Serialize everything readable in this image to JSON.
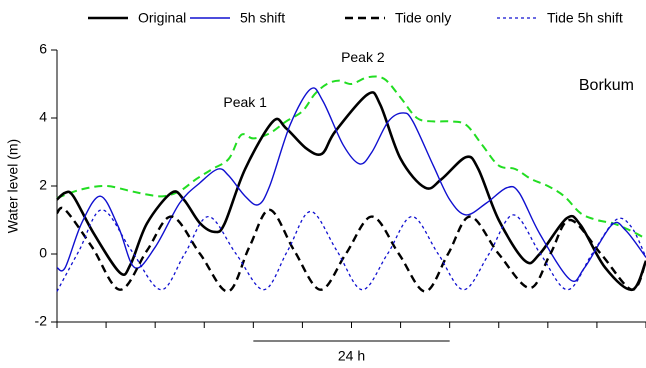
{
  "chart_data": {
    "type": "line",
    "ylabel": "Water level (m)",
    "ylim": [
      -2,
      6
    ],
    "yticks": [
      -2,
      0,
      2,
      4,
      6
    ],
    "xlim": [
      0,
      72
    ],
    "xticks": [
      0,
      6,
      12,
      18,
      24,
      30,
      36,
      42,
      48,
      54,
      60,
      66,
      72
    ],
    "annotations": [
      {
        "text": "Peak 1",
        "x": 26.4,
        "y": 3.9
      },
      {
        "text": "Peak 2",
        "x": 38,
        "y": 5.2
      },
      {
        "text": "Borkum"
      }
    ],
    "span": {
      "label": "24 h",
      "range": [
        24,
        48
      ]
    },
    "series": [
      {
        "name": "Original",
        "color": "#000000",
        "style": "solid",
        "width": 2.6,
        "x": [
          0,
          1,
          2,
          4.5,
          7.7,
          9,
          11,
          14,
          15.5,
          17.5,
          19.3,
          20.5,
          23,
          26.4,
          28,
          30.5,
          32.4,
          34,
          38,
          39.5,
          42,
          45,
          47,
          50,
          51.5,
          54,
          57.2,
          59,
          62.3,
          64,
          67,
          70.3,
          72
        ],
        "values": [
          1.6,
          1.8,
          1.7,
          0.6,
          -0.55,
          -0.3,
          0.9,
          1.8,
          1.6,
          0.9,
          0.65,
          0.9,
          2.5,
          3.9,
          3.7,
          3.1,
          2.95,
          3.6,
          4.7,
          4.4,
          2.8,
          1.95,
          2.2,
          2.85,
          2.5,
          1.0,
          -0.2,
          0.0,
          1.05,
          0.85,
          -0.4,
          -1.05,
          -0.2
        ]
      },
      {
        "name": "5h shift",
        "color": "#1010d0",
        "style": "solid",
        "width": 1.4,
        "x": [
          0,
          1,
          3,
          5.3,
          7.5,
          9.5,
          12,
          15,
          17.5,
          19.7,
          21,
          23,
          24.6,
          26,
          28.5,
          31,
          32.5,
          35,
          37,
          38.5,
          40.5,
          42.3,
          43.5,
          46,
          48,
          50,
          52.5,
          55,
          56.5,
          59,
          62.7,
          64.5,
          67.8,
          69.5,
          72
        ],
        "values": [
          -0.4,
          -0.4,
          0.9,
          1.7,
          0.8,
          -0.4,
          0.2,
          1.5,
          2.1,
          2.5,
          2.3,
          1.7,
          1.45,
          2.0,
          3.8,
          4.85,
          4.5,
          3.2,
          2.65,
          3.0,
          3.9,
          4.15,
          3.9,
          2.6,
          1.6,
          1.15,
          1.5,
          1.95,
          1.8,
          0.6,
          -0.75,
          -0.4,
          0.85,
          0.7,
          -0.1
        ]
      },
      {
        "name": "Tide only",
        "color": "#000000",
        "style": "dashed",
        "width": 2.4,
        "x": [
          0,
          1,
          4.3,
          7.7,
          11,
          14,
          17.5,
          20.9,
          23.5,
          26,
          29,
          32.2,
          35.3,
          38.5,
          41.8,
          45,
          47.8,
          50.5,
          54,
          57.8,
          60.3,
          62.7,
          66.5,
          70.3,
          72
        ],
        "values": [
          1.2,
          1.3,
          0.2,
          -1.05,
          0.1,
          1.1,
          0.0,
          -1.1,
          0.2,
          1.3,
          0.1,
          -1.05,
          0.0,
          1.1,
          0.0,
          -1.1,
          0.0,
          1.1,
          0.0,
          -1.0,
          0.0,
          1.0,
          0.0,
          -1.05,
          -0.2
        ]
      },
      {
        "name": "Tide 5h shift",
        "color": "#1010d0",
        "style": "dotted",
        "width": 1.3,
        "x": [
          0,
          2.7,
          5.5,
          9.1,
          12.7,
          15.6,
          18.5,
          21.9,
          25.3,
          28.2,
          31,
          34.2,
          37.3,
          40.4,
          43.4,
          46.6,
          49.7,
          52.8,
          55.8,
          59.1,
          62.4,
          65.4,
          68.3,
          70.2,
          72
        ],
        "values": [
          -1.1,
          0.1,
          1.3,
          0.1,
          -1.05,
          0.0,
          1.1,
          0.0,
          -1.05,
          0.1,
          1.25,
          0.1,
          -1.05,
          0.0,
          1.1,
          0.0,
          -1.05,
          0.0,
          1.15,
          0.0,
          -1.05,
          0.0,
          1.0,
          0.8,
          -0.1
        ]
      },
      {
        "color": "#22dd22",
        "style": "dashed",
        "width": 2,
        "x": [
          0,
          3,
          6,
          9,
          11,
          13,
          15,
          17,
          19,
          21,
          22.5,
          24,
          26,
          28,
          30,
          31.5,
          33,
          34.5,
          36,
          38,
          40,
          42,
          44,
          46,
          48,
          50,
          52,
          54,
          56,
          58,
          60,
          62,
          64,
          66,
          68,
          70,
          72
        ],
        "values": [
          1.65,
          1.9,
          2.0,
          1.85,
          1.75,
          1.7,
          1.85,
          2.2,
          2.5,
          2.8,
          3.5,
          3.4,
          3.55,
          3.9,
          4.2,
          4.7,
          5.0,
          5.1,
          5.0,
          5.2,
          5.15,
          4.6,
          4.0,
          3.9,
          3.9,
          3.8,
          3.2,
          2.6,
          2.5,
          2.2,
          2.0,
          1.7,
          1.2,
          1.0,
          0.9,
          0.7,
          0.45
        ]
      }
    ]
  }
}
